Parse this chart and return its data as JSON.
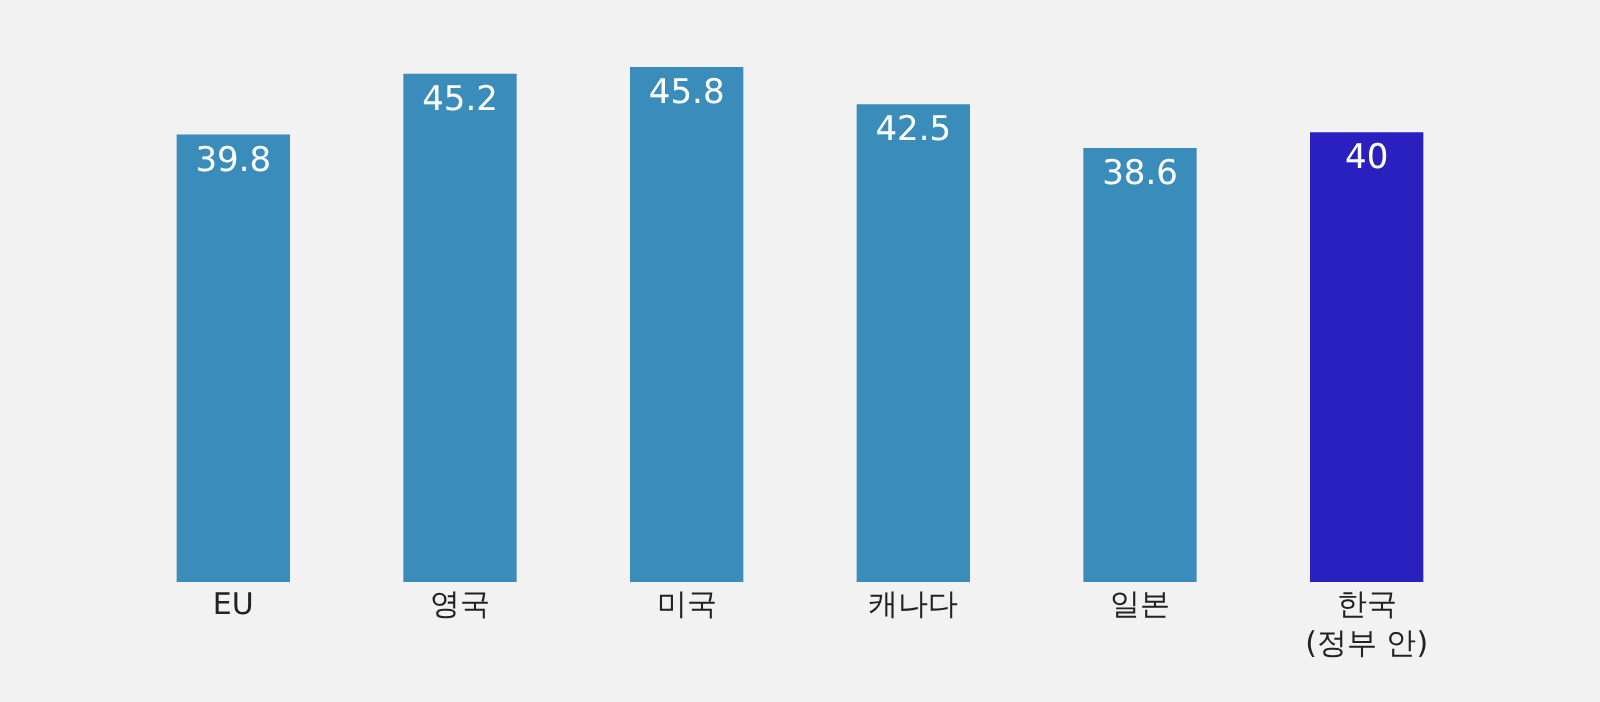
{
  "chart_data": {
    "type": "bar",
    "categories": [
      "EU",
      "영국",
      "미국",
      "캐나다",
      "일본",
      "한국\n(정부 안)"
    ],
    "values": [
      39.8,
      45.2,
      45.8,
      42.5,
      38.6,
      40
    ],
    "colors": [
      "#3a8dbb",
      "#3a8dbb",
      "#3a8dbb",
      "#3a8dbb",
      "#3a8dbb",
      "#2a20c0"
    ],
    "data_labels": true,
    "grid": false,
    "legend": false
  }
}
